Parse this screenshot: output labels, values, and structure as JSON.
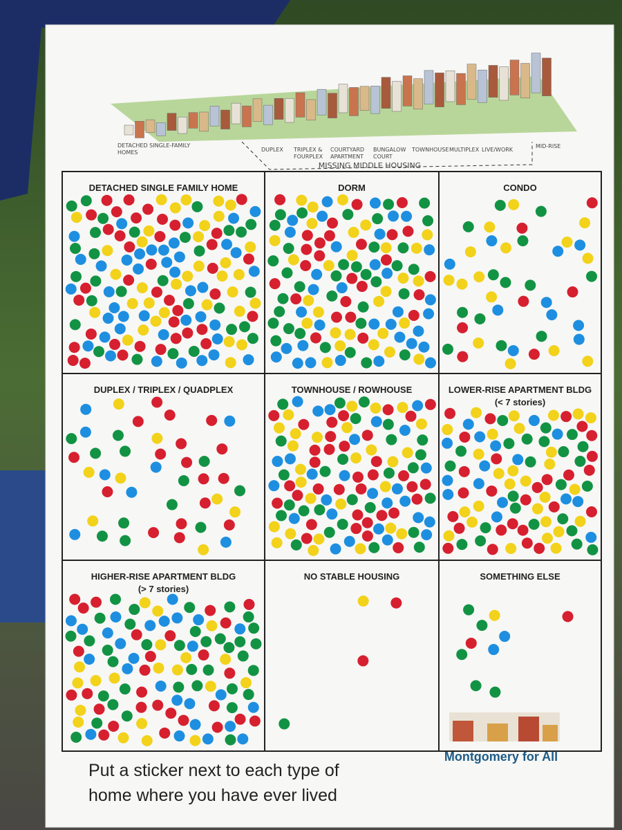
{
  "header": {
    "labels": [
      {
        "lines": [
          "DETACHED SINGLE-FAMILY",
          "HOMES"
        ]
      },
      {
        "lines": [
          "DUPLEX"
        ]
      },
      {
        "lines": [
          "TRIPLEX &",
          "FOURPLEX"
        ]
      },
      {
        "lines": [
          "COURTYARD",
          "APARTMENT"
        ]
      },
      {
        "lines": [
          "BUNGALOW",
          "COURT"
        ]
      },
      {
        "lines": [
          "TOWNHOUSE"
        ]
      },
      {
        "lines": [
          "MULTIPLEX"
        ]
      },
      {
        "lines": [
          "LIVE/WORK"
        ]
      },
      {
        "lines": [
          "MID-RISE"
        ]
      }
    ],
    "range_label": "MISSING MIDDLE HOUSING"
  },
  "grid": {
    "cells": [
      {
        "title": "DETACHED SINGLE FAMILY HOME"
      },
      {
        "title": "DORM"
      },
      {
        "title": "CONDO"
      },
      {
        "title": "DUPLEX / TRIPLEX / QUADPLEX"
      },
      {
        "title": "TOWNHOUSE / ROWHOUSE"
      },
      {
        "title": "LOWER-RISE APARTMENT BLDG",
        "subtitle": "(< 7 stories)"
      },
      {
        "title": "HIGHER-RISE APARTMENT BLDG",
        "subtitle": "(> 7 stories)"
      },
      {
        "title": "NO STABLE HOUSING"
      },
      {
        "title": "SOMETHING ELSE"
      }
    ]
  },
  "footer": {
    "instruction": [
      "Put a sticker next to each type of",
      "home where you have ever lived"
    ],
    "logo": "Montgomery for All"
  }
}
